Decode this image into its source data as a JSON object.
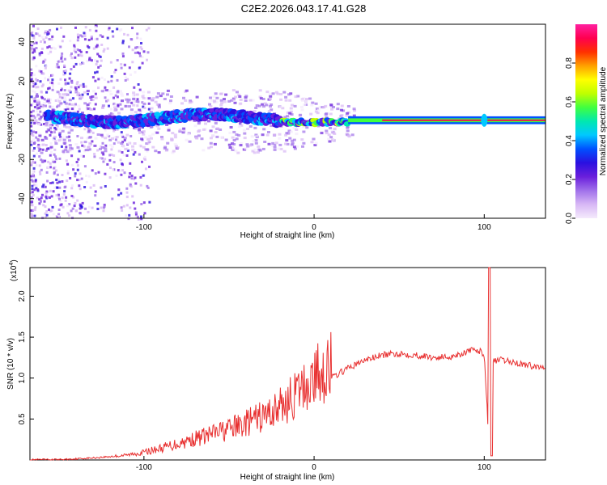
{
  "title": "C2E2.2026.043.17.41.G28",
  "chart_data": [
    {
      "type": "heatmap",
      "name": "spectrogram",
      "xlabel": "Height of straight line (km)",
      "ylabel": "Frequency (Hz)",
      "xlim": [
        -167,
        136
      ],
      "ylim": [
        -50,
        49
      ],
      "xticks": [
        -100,
        0,
        100
      ],
      "xtick_labels": [
        "-100",
        "0",
        "100"
      ],
      "yticks": [
        -40,
        -20,
        0,
        20,
        40
      ],
      "ytick_labels": [
        "-40",
        "-20",
        "0",
        "20",
        "40"
      ],
      "colorbar": {
        "label": "Normalized spectral amplitude",
        "range": [
          0,
          1
        ],
        "ticks": [
          0.0,
          0.2,
          0.4,
          0.6,
          0.8
        ],
        "tick_labels": [
          "0.0",
          "0.2",
          "0.4",
          "0.6",
          "0.8"
        ],
        "colors": [
          "#f4eafc",
          "#d8b8f5",
          "#a070ea",
          "#6a1fdc",
          "#2a10e0",
          "#0050ff",
          "#00c8ff",
          "#00e8b0",
          "#40ff40",
          "#c0ff00",
          "#ffff00",
          "#ffa000",
          "#ff3000",
          "#ff0050",
          "#ff20a0"
        ]
      }
    },
    {
      "type": "line",
      "name": "snr",
      "xlabel": "Height of straight line (km)",
      "ylabel": "SNR (10 * v/v)",
      "y_multiplier": "(x10",
      "y_multiplier_exp": "4",
      "y_multiplier_close": ")",
      "xlim": [
        -167,
        136
      ],
      "ylim": [
        0,
        2.35
      ],
      "xticks": [
        -100,
        0,
        100
      ],
      "xtick_labels": [
        "-100",
        "0",
        "100"
      ],
      "yticks": [
        0.5,
        1.0,
        1.5,
        2.0
      ],
      "ytick_labels": [
        "0.5",
        "1.0",
        "1.5",
        "2.0"
      ],
      "line_color": "#e83030",
      "x": [
        -167,
        -150,
        -130,
        -110,
        -100,
        -90,
        -80,
        -70,
        -60,
        -50,
        -40,
        -30,
        -20,
        -10,
        0,
        10,
        20,
        30,
        40,
        50,
        60,
        70,
        80,
        90,
        95,
        100,
        103,
        105,
        110,
        120,
        130,
        136
      ],
      "y": [
        0.0,
        0.0,
        0.02,
        0.05,
        0.08,
        0.12,
        0.17,
        0.22,
        0.27,
        0.32,
        0.38,
        0.45,
        0.55,
        0.68,
        0.85,
        1.0,
        1.12,
        1.22,
        1.28,
        1.3,
        1.28,
        1.25,
        1.26,
        1.32,
        1.35,
        1.3,
        0.1,
        1.2,
        1.22,
        1.18,
        1.14,
        1.13
      ],
      "spike": {
        "x": 103,
        "y_high": 2.35,
        "y_low": 0.05
      }
    }
  ]
}
